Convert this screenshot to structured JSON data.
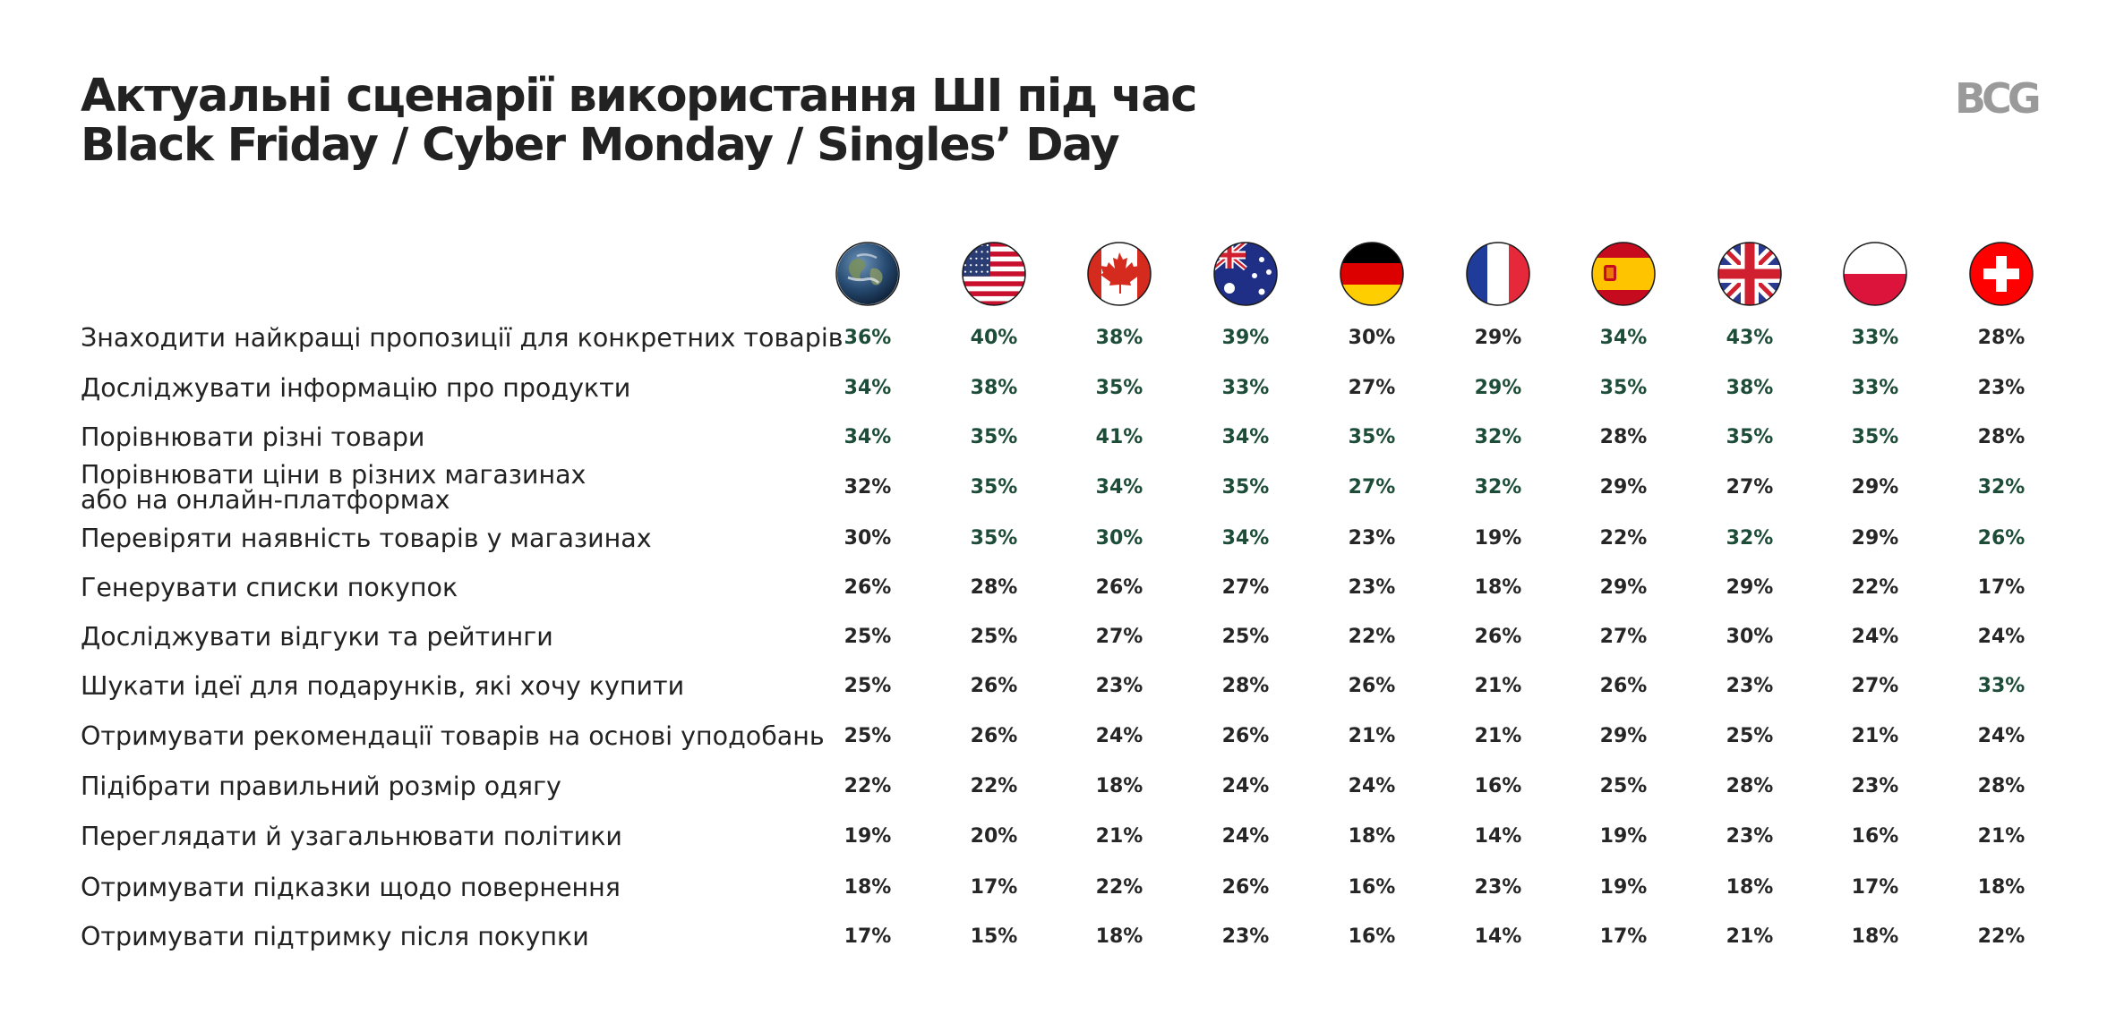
{
  "title": {
    "line1": "Актуальні сценарії використання ШІ під час",
    "line2": "Black Friday / Cyber Monday / Singles’ Day"
  },
  "logo_text": "BCG",
  "colors": {
    "highlight": "#1d4d38",
    "normal": "#262626"
  },
  "chart_data": {
    "type": "table",
    "columns": [
      {
        "flag": "globe-icon"
      },
      {
        "flag": "usa-flag-icon"
      },
      {
        "flag": "canada-flag-icon"
      },
      {
        "flag": "australia-flag-icon"
      },
      {
        "flag": "germany-flag-icon"
      },
      {
        "flag": "france-flag-icon"
      },
      {
        "flag": "spain-flag-icon"
      },
      {
        "flag": "uk-flag-icon"
      },
      {
        "flag": "poland-flag-icon"
      },
      {
        "flag": "switzerland-flag-icon"
      }
    ],
    "rows": [
      {
        "label": "Знаходити найкращі пропозиції для конкретних товарів",
        "values": [
          "36%",
          "40%",
          "38%",
          "39%",
          "30%",
          "29%",
          "34%",
          "43%",
          "33%",
          "28%"
        ],
        "highlight": [
          1,
          1,
          1,
          1,
          0,
          0,
          1,
          1,
          1,
          0
        ]
      },
      {
        "label": "Досліджувати інформацію про продукти",
        "values": [
          "34%",
          "38%",
          "35%",
          "33%",
          "27%",
          "29%",
          "35%",
          "38%",
          "33%",
          "23%"
        ],
        "highlight": [
          1,
          1,
          1,
          1,
          0,
          1,
          1,
          1,
          1,
          0
        ]
      },
      {
        "label": "Порівнювати різні товари",
        "values": [
          "34%",
          "35%",
          "41%",
          "34%",
          "35%",
          "32%",
          "28%",
          "35%",
          "35%",
          "28%"
        ],
        "highlight": [
          1,
          1,
          1,
          1,
          1,
          1,
          0,
          1,
          1,
          0
        ]
      },
      {
        "label": "Порівнювати ціни в різних магазинах",
        "label2": "або на онлайн-платформах",
        "values": [
          "32%",
          "35%",
          "34%",
          "35%",
          "27%",
          "32%",
          "29%",
          "27%",
          "29%",
          "32%"
        ],
        "highlight": [
          0,
          1,
          1,
          1,
          1,
          1,
          0,
          0,
          0,
          1
        ]
      },
      {
        "label": "Перевіряти наявність товарів у магазинах",
        "values": [
          "30%",
          "35%",
          "30%",
          "34%",
          "23%",
          "19%",
          "22%",
          "32%",
          "29%",
          "26%"
        ],
        "highlight": [
          0,
          1,
          1,
          1,
          0,
          0,
          0,
          1,
          0,
          1
        ]
      },
      {
        "label": "Генерувати списки покупок",
        "values": [
          "26%",
          "28%",
          "26%",
          "27%",
          "23%",
          "18%",
          "29%",
          "29%",
          "22%",
          "17%"
        ],
        "highlight": [
          0,
          0,
          0,
          0,
          0,
          0,
          0,
          0,
          0,
          0
        ]
      },
      {
        "label": "Досліджувати відгуки та рейтинги",
        "values": [
          "25%",
          "25%",
          "27%",
          "25%",
          "22%",
          "26%",
          "27%",
          "30%",
          "24%",
          "24%"
        ],
        "highlight": [
          0,
          0,
          0,
          0,
          0,
          0,
          0,
          0,
          0,
          0
        ]
      },
      {
        "label": "Шукати ідеї для подарунків, які хочу купити",
        "values": [
          "25%",
          "26%",
          "23%",
          "28%",
          "26%",
          "21%",
          "26%",
          "23%",
          "27%",
          "33%"
        ],
        "highlight": [
          0,
          0,
          0,
          0,
          0,
          0,
          0,
          0,
          0,
          1
        ]
      },
      {
        "label": "Отримувати рекомендації товарів на основі уподобань",
        "values": [
          "25%",
          "26%",
          "24%",
          "26%",
          "21%",
          "21%",
          "29%",
          "25%",
          "21%",
          "24%"
        ],
        "highlight": [
          0,
          0,
          0,
          0,
          0,
          0,
          0,
          0,
          0,
          0
        ]
      },
      {
        "label": "Підібрати правильний розмір одягу",
        "values": [
          "22%",
          "22%",
          "18%",
          "24%",
          "24%",
          "16%",
          "25%",
          "28%",
          "23%",
          "28%"
        ],
        "highlight": [
          0,
          0,
          0,
          0,
          0,
          0,
          0,
          0,
          0,
          0
        ]
      },
      {
        "label": "Переглядати й узагальнювати політики",
        "values": [
          "19%",
          "20%",
          "21%",
          "24%",
          "18%",
          "14%",
          "19%",
          "23%",
          "16%",
          "21%"
        ],
        "highlight": [
          0,
          0,
          0,
          0,
          0,
          0,
          0,
          0,
          0,
          0
        ]
      },
      {
        "label": "Отримувати підказки щодо повернення",
        "values": [
          "18%",
          "17%",
          "22%",
          "26%",
          "16%",
          "23%",
          "19%",
          "18%",
          "17%",
          "18%"
        ],
        "highlight": [
          0,
          0,
          0,
          0,
          0,
          0,
          0,
          0,
          0,
          0
        ]
      },
      {
        "label": "Отримувати підтримку після покупки",
        "values": [
          "17%",
          "15%",
          "18%",
          "23%",
          "16%",
          "14%",
          "17%",
          "21%",
          "18%",
          "22%"
        ],
        "highlight": [
          0,
          0,
          0,
          0,
          0,
          0,
          0,
          0,
          0,
          0
        ]
      }
    ]
  }
}
